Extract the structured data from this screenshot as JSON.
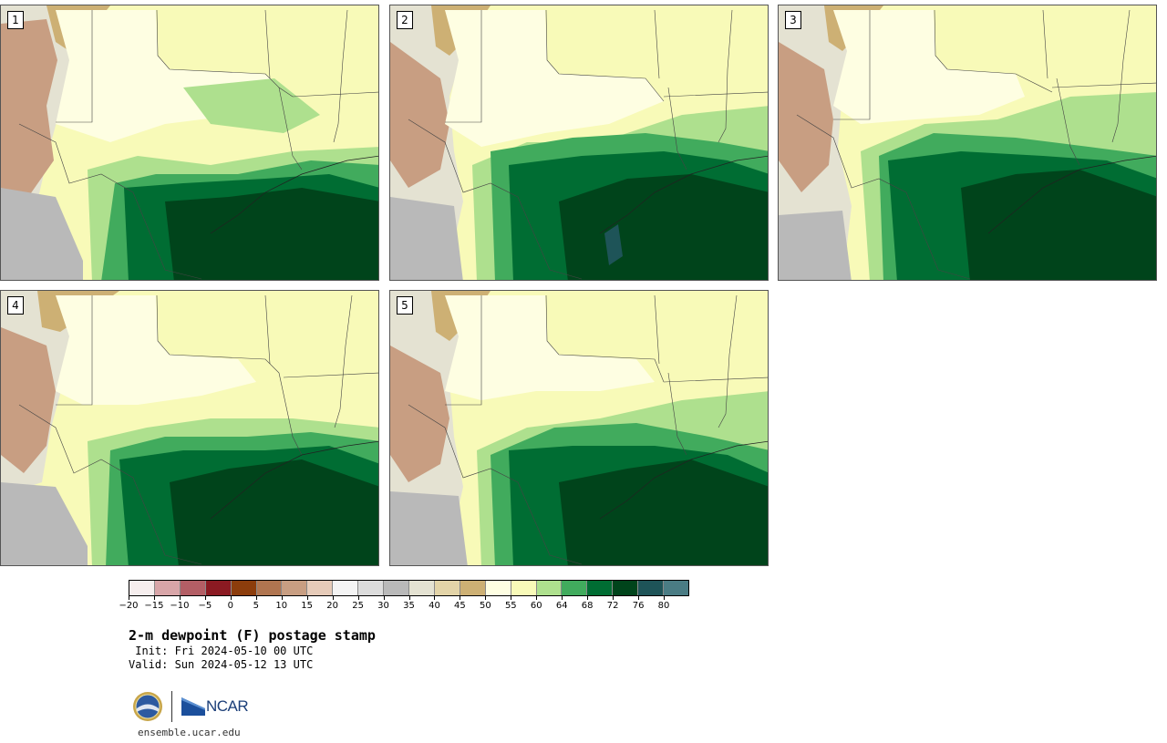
{
  "panels": [
    {
      "label": "1"
    },
    {
      "label": "2"
    },
    {
      "label": "3"
    },
    {
      "label": "4"
    },
    {
      "label": "5"
    }
  ],
  "colorbar": {
    "colors": [
      "#f6eeee",
      "#d8a5a8",
      "#b35e65",
      "#8b1a22",
      "#8c3d0c",
      "#b07550",
      "#c89e82",
      "#e6cbb9",
      "#f4f4f4",
      "#dcdcdc",
      "#b9b9b9",
      "#e4e2d2",
      "#e3d4a8",
      "#cdb074",
      "#fefee2",
      "#f8fab8",
      "#aee08e",
      "#41ab5d",
      "#006d33",
      "#00441b",
      "#1e5458",
      "#4a7c84"
    ],
    "ticks": [
      "−20",
      "−15",
      "−10",
      "−5",
      "0",
      "5",
      "10",
      "15",
      "20",
      "25",
      "30",
      "35",
      "40",
      "45",
      "50",
      "55",
      "60",
      "64",
      "68",
      "72",
      "76",
      "80"
    ]
  },
  "title": "2-m dewpoint (F) postage stamp",
  "init": " Init: Fri 2024-05-10 00 UTC",
  "valid": "Valid: Sun 2024-05-12 13 UTC",
  "footer": {
    "logo_text": "NCAR",
    "url": "ensemble.ucar.edu"
  }
}
